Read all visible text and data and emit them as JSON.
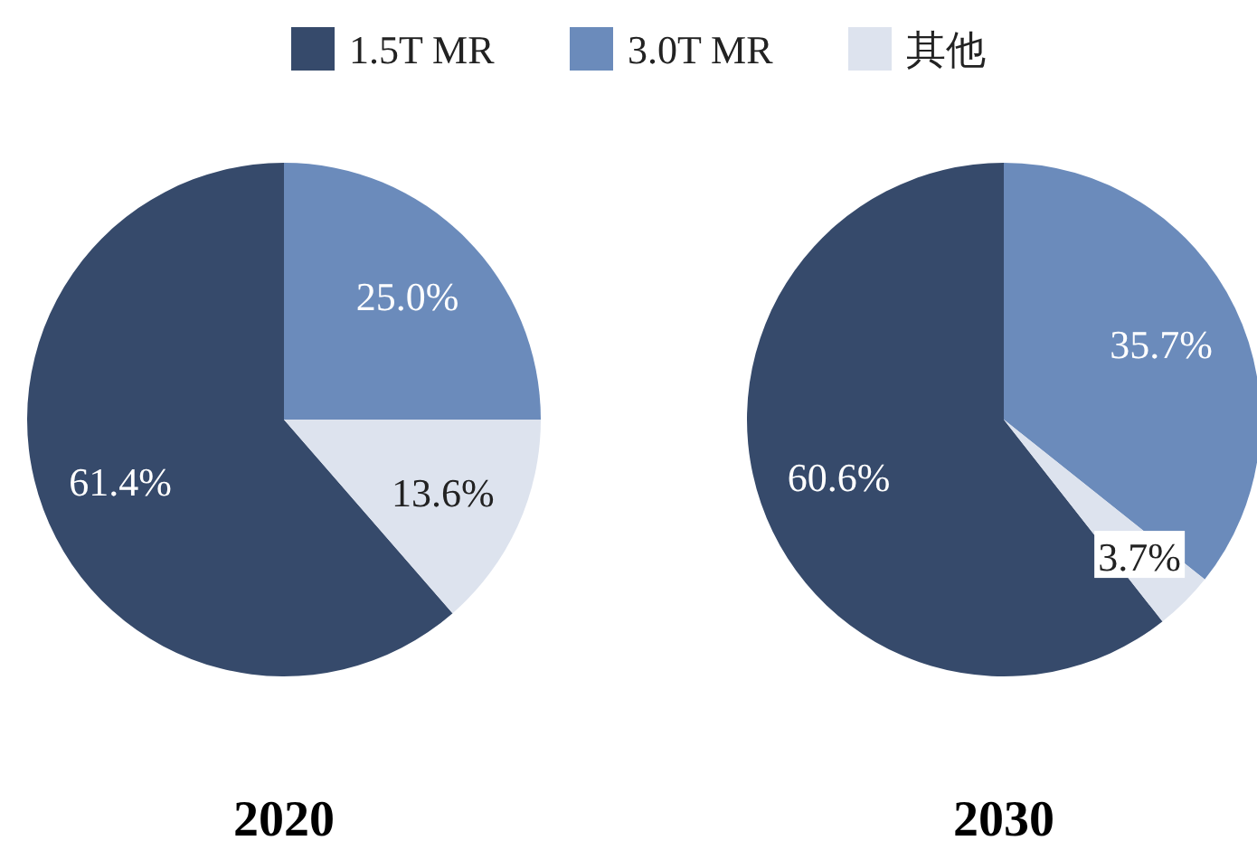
{
  "chart_data": [
    {
      "type": "pie",
      "title": "2020",
      "categories": [
        "1.5T MR",
        "3.0T MR",
        "其他"
      ],
      "values": [
        61.4,
        25.0,
        13.6
      ],
      "colors": [
        "#364a6b",
        "#6b8bbb",
        "#dde3ee"
      ],
      "value_labels": [
        "61.4%",
        "25.0%",
        "13.6%"
      ],
      "legend": "top"
    },
    {
      "type": "pie",
      "title": "2030",
      "categories": [
        null,
        null,
        null
      ],
      "values": [
        60.6,
        35.7,
        3.7
      ],
      "colors": [
        "#364a6b",
        "#6b8bbb",
        "#dde3ee"
      ],
      "value_labels": [
        "60.6%",
        "35.7%",
        "3.7%"
      ]
    }
  ]
}
